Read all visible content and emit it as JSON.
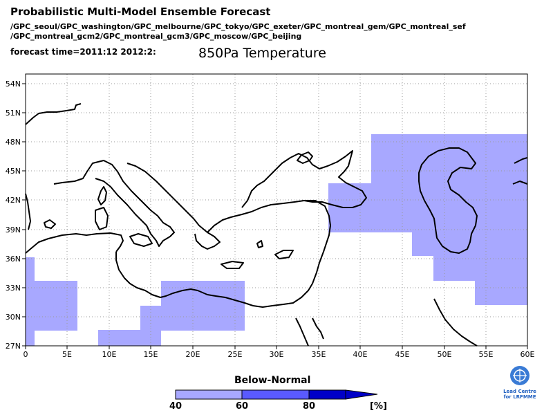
{
  "header": {
    "title": "Probabilistic Multi-Model Ensemble Forecast",
    "models_line1": "/GPC_seoul/GPC_washington/GPC_melbourne/GPC_tokyo/GPC_exeter/GPC_montreal_gem/GPC_montreal_sef",
    "models_line2": "/GPC_montreal_gcm2/GPC_montreal_gcm3/GPC_moscow/GPC_beijing",
    "forecast_time": "forecast time=2011:12 2012:2:",
    "variable": "850Pa Temperature"
  },
  "map": {
    "lon_range": [
      0,
      60
    ],
    "lat_range": [
      27,
      55
    ],
    "lon_ticks": [
      "0",
      "5E",
      "10E",
      "15E",
      "20E",
      "25E",
      "30E",
      "35E",
      "40E",
      "45E",
      "50E",
      "55E",
      "60E"
    ],
    "lat_ticks": [
      "27N",
      "30N",
      "33N",
      "36N",
      "39N",
      "42N",
      "45N",
      "48N",
      "51N",
      "54N"
    ],
    "grid": "dotted",
    "shade_color": "#a8a8ff"
  },
  "colorbar": {
    "title": "Below-Normal",
    "labels": [
      "40",
      "60",
      "80"
    ],
    "unit": "[%]",
    "colors": [
      "#a8a8ff",
      "#5a5aff",
      "#0000c8"
    ]
  },
  "logo": {
    "line1": "Lead Centre",
    "line2": "for LRFMME",
    "icon": "un-wmo-emblem-icon"
  }
}
